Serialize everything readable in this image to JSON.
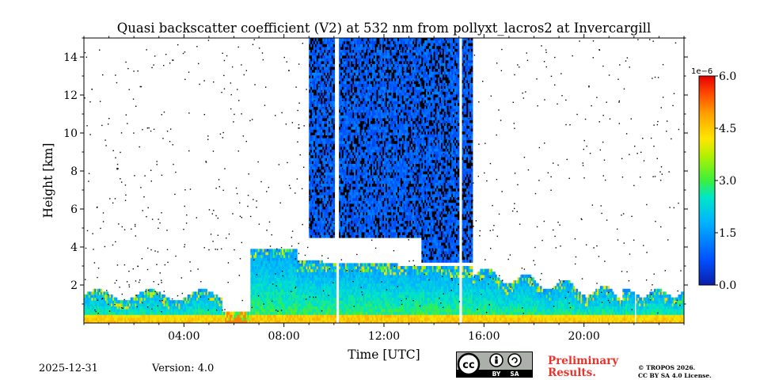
{
  "chart_data": {
    "type": "heatmap",
    "title": "Quasi backscatter coefficient (V2) at 532 nm from pollyxt_lacros2 at Invercargill",
    "xlabel": "Time [UTC]",
    "ylabel": "Height [km]",
    "xlim": [
      0,
      24
    ],
    "ylim": [
      0,
      15
    ],
    "x_ticks": [
      4,
      8,
      12,
      16,
      20
    ],
    "x_tick_labels": [
      "04:00",
      "08:00",
      "12:00",
      "16:00",
      "20:00"
    ],
    "y_ticks": [
      2,
      4,
      6,
      8,
      10,
      12,
      14
    ],
    "y_tick_labels": [
      "2",
      "4",
      "6",
      "8",
      "10",
      "12",
      "14"
    ],
    "colorbar": {
      "min": 0.0,
      "max": 6.0,
      "scale_label": "1e−6",
      "ticks": [
        0.0,
        1.5,
        3.0,
        4.5,
        6.0
      ],
      "tick_labels": [
        "0.0",
        "1.5",
        "3.0",
        "4.5",
        "6.0"
      ],
      "colormap": "jet"
    },
    "data_gaps_utc": [
      [
        10.05,
        10.2
      ],
      [
        15.0,
        15.12
      ],
      [
        22.03,
        22.1
      ]
    ],
    "cloud_layers": [
      {
        "start": 9.0,
        "end": 13.5,
        "base_km": 4.5,
        "top_km": 15.0
      },
      {
        "start": 13.5,
        "end": 15.5,
        "base_km": 3.2,
        "top_km": 15.0
      }
    ]
  },
  "footer": {
    "date": "2025-12-31",
    "version": "Version: 4.0",
    "preliminary_line1": "Preliminary",
    "preliminary_line2": "Results.",
    "license_line1": "© TROPOS 2026.",
    "license_line2": "CC BY SA 4.0 License.",
    "cc_label": "cc",
    "by_label": "BY",
    "sa_label": "SA"
  },
  "colors": {
    "background": "#ffffff",
    "preliminary": "#e8342b",
    "axis": "#000000"
  }
}
